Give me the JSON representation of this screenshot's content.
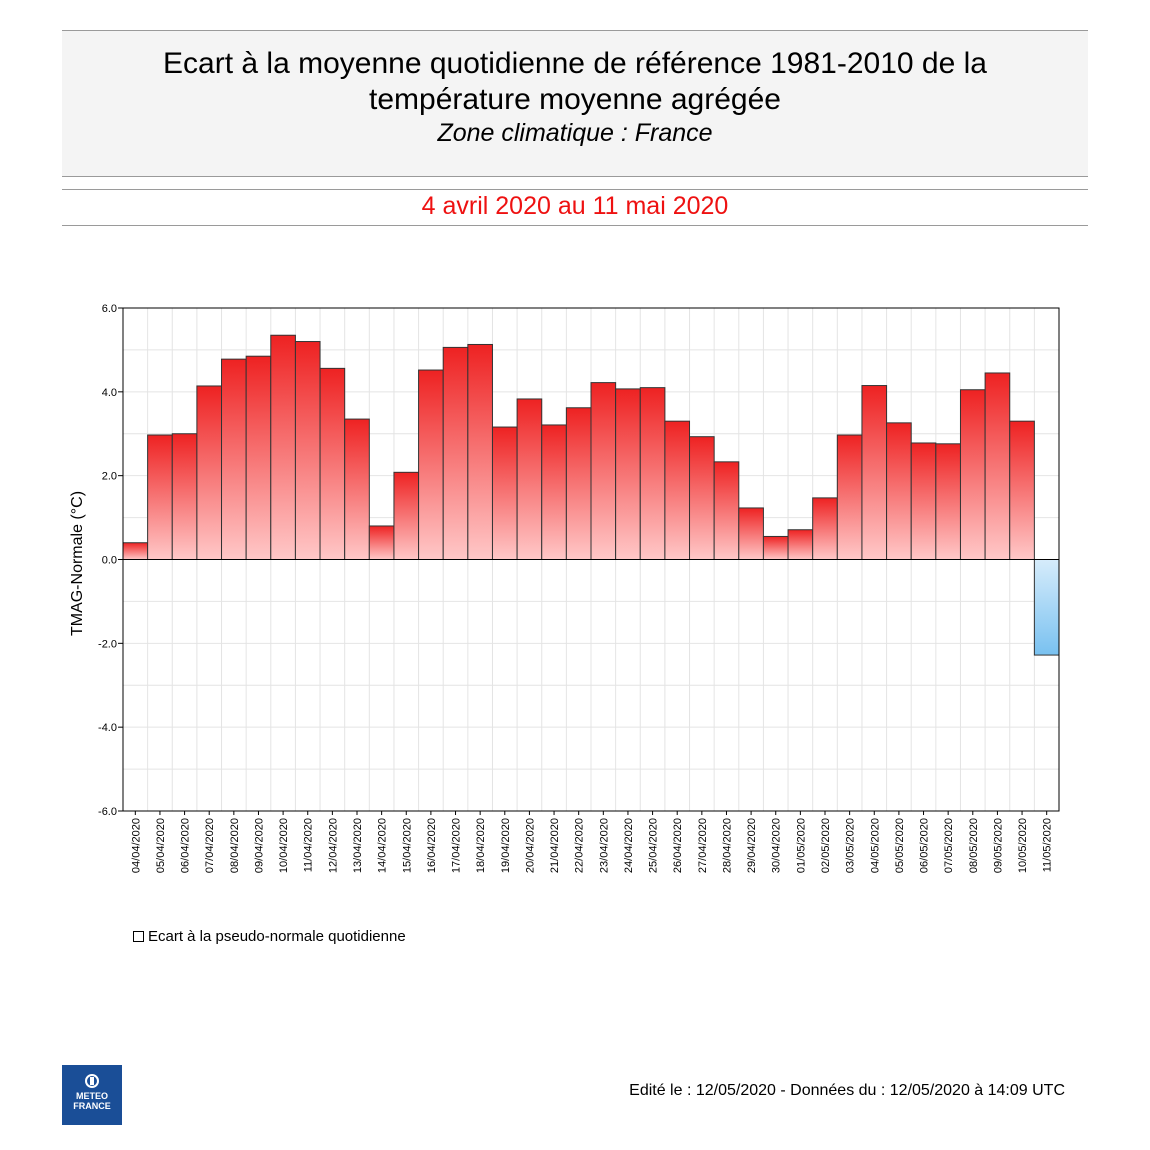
{
  "header": {
    "title_line1": "Ecart à la moyenne quotidienne de référence 1981-2010 de la",
    "title_line2": "température moyenne  agrégée",
    "subtitle": "Zone climatique : France",
    "period": "4 avril 2020 au 11 mai 2020"
  },
  "colors": {
    "positive_top": "#ee2222",
    "positive_bottom": "#ffc8c8",
    "negative_top": "#d6ecfb",
    "negative_bottom": "#79c1f0",
    "period": "#ee1111"
  },
  "chart_data": {
    "type": "bar",
    "title": "Ecart à la moyenne quotidienne de référence 1981-2010 de la température moyenne agrégée",
    "xlabel": "",
    "ylabel": "TMAG-Normale (°C)",
    "ylim": [
      -6,
      6
    ],
    "yticks": [
      6,
      4,
      2,
      0,
      -2,
      -4,
      -6
    ],
    "ytick_labels": [
      "6.0",
      "4.0",
      "2.0",
      "0.0",
      "-2.0",
      "-4.0",
      "-6.0"
    ],
    "grid": true,
    "categories": [
      "04/04/2020",
      "05/04/2020",
      "06/04/2020",
      "07/04/2020",
      "08/04/2020",
      "09/04/2020",
      "10/04/2020",
      "11/04/2020",
      "12/04/2020",
      "13/04/2020",
      "14/04/2020",
      "15/04/2020",
      "16/04/2020",
      "17/04/2020",
      "18/04/2020",
      "19/04/2020",
      "20/04/2020",
      "21/04/2020",
      "22/04/2020",
      "23/04/2020",
      "24/04/2020",
      "25/04/2020",
      "26/04/2020",
      "27/04/2020",
      "28/04/2020",
      "29/04/2020",
      "30/04/2020",
      "01/05/2020",
      "02/05/2020",
      "03/05/2020",
      "04/05/2020",
      "05/05/2020",
      "06/05/2020",
      "07/05/2020",
      "08/05/2020",
      "09/05/2020",
      "10/05/2020",
      "11/05/2020"
    ],
    "values": [
      0.4,
      2.97,
      3.0,
      4.14,
      4.78,
      4.85,
      5.35,
      5.2,
      4.56,
      3.35,
      0.8,
      2.08,
      4.52,
      5.06,
      5.13,
      3.16,
      3.83,
      3.21,
      3.62,
      4.22,
      4.07,
      4.1,
      3.3,
      2.93,
      2.33,
      1.23,
      0.55,
      0.71,
      1.47,
      2.97,
      4.15,
      3.26,
      2.78,
      2.76,
      4.05,
      4.45,
      3.3,
      -2.28
    ],
    "legend": [
      "Ecart à la pseudo-normale quotidienne"
    ]
  },
  "footer": {
    "edited": "Edité le : 12/05/2020 - Données du : 12/05/2020 à 14:09 UTC"
  },
  "logo": {
    "line1": "METEO",
    "line2": "FRANCE"
  }
}
